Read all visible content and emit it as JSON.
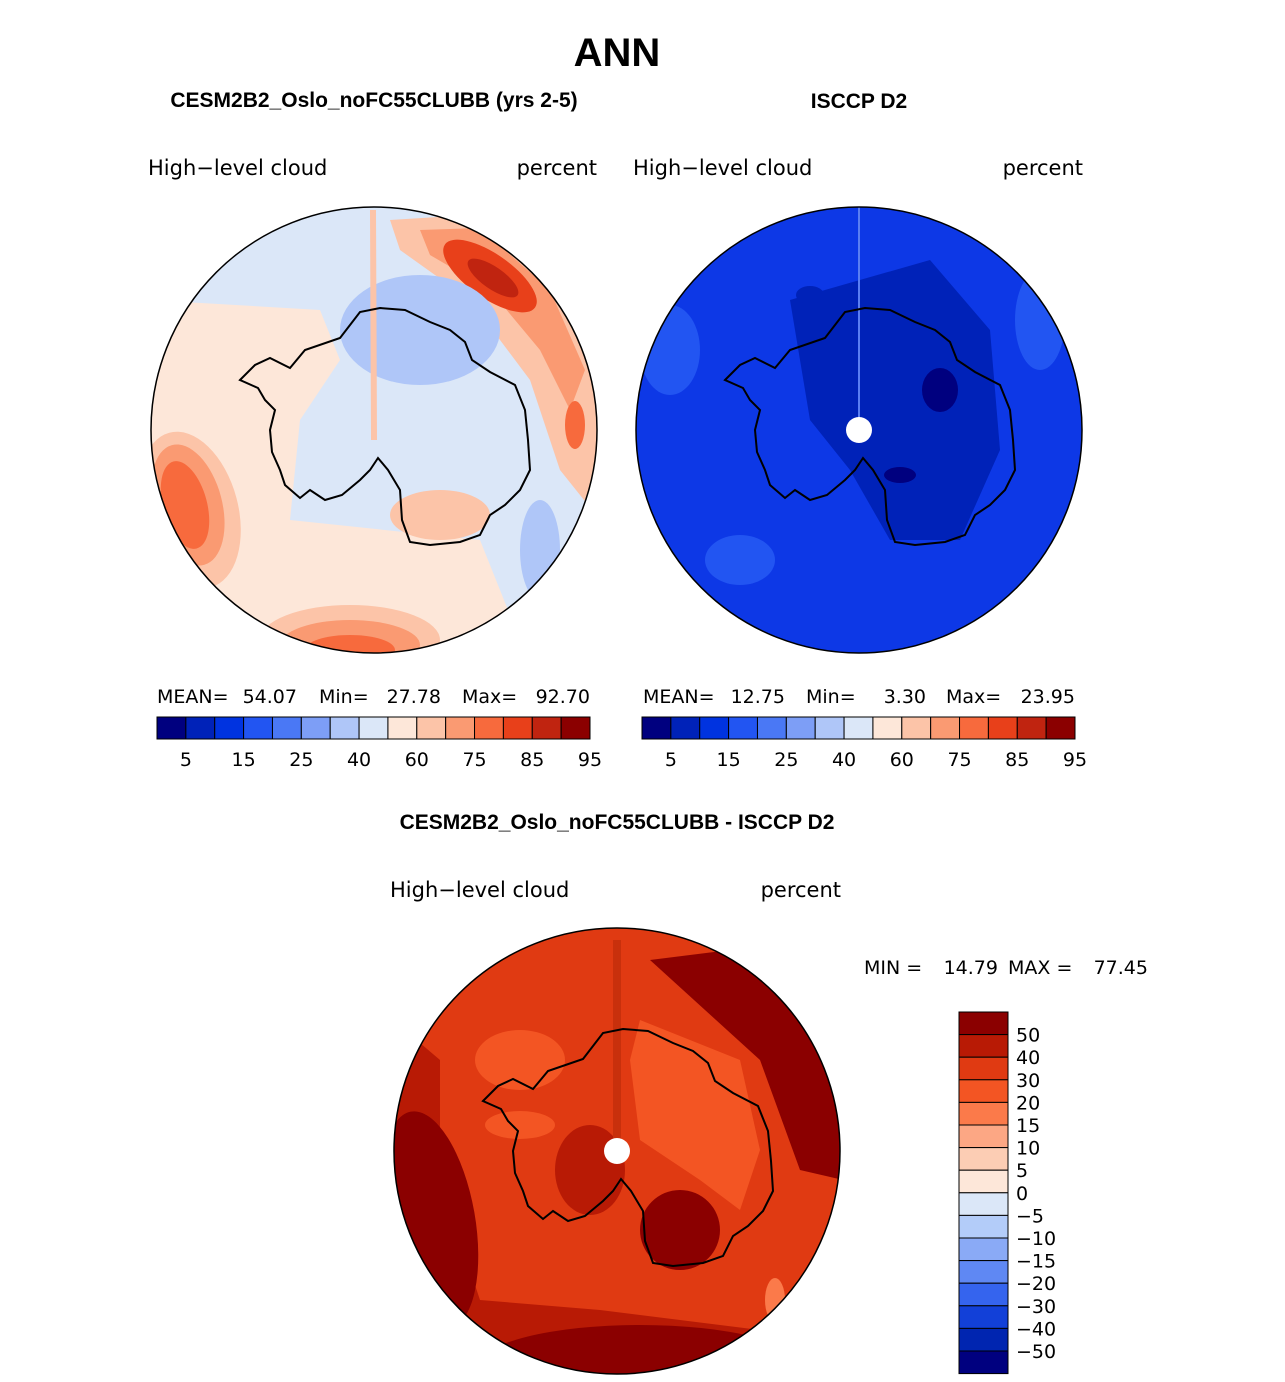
{
  "main_title": "ANN",
  "panels": {
    "model": {
      "title": "CESM2B2_Oslo_noFC55CLUBB (yrs 2-5)",
      "variable": "High−level cloud",
      "units": "percent",
      "mean_label": "MEAN=",
      "mean": "54.07",
      "min_label": "Min=",
      "min": "27.78",
      "max_label": "Max=",
      "max": "92.70"
    },
    "obs": {
      "title": "ISCCP D2",
      "variable": "High−level cloud",
      "units": "percent",
      "mean_label": "MEAN=",
      "mean": "12.75",
      "min_label": "Min=",
      "min": "3.30",
      "max_label": "Max=",
      "max": "23.95"
    },
    "diff": {
      "title": "CESM2B2_Oslo_noFC55CLUBB - ISCCP D2",
      "variable": "High−level cloud",
      "units": "percent",
      "min_label": "MIN =",
      "min": "14.79",
      "max_label": "MAX =",
      "max": "77.45"
    }
  },
  "colorbar_abs": {
    "colors": [
      "#00007f",
      "#0022b8",
      "#0033e0",
      "#2255f2",
      "#4a78f5",
      "#7d9ef6",
      "#afc6f8",
      "#dbe7f8",
      "#fde7d9",
      "#fcc4a8",
      "#fa9a72",
      "#f76a3d",
      "#e8401a",
      "#c02410",
      "#8b0000"
    ],
    "labels": [
      "5",
      "15",
      "25",
      "40",
      "60",
      "75",
      "85",
      "95"
    ]
  },
  "colorbar_diff": {
    "colors": [
      "#8b0000",
      "#b81a05",
      "#e03a12",
      "#f35523",
      "#fb7a4a",
      "#fca784",
      "#fccdb4",
      "#fde7d9",
      "#dbe7f8",
      "#b3ccf9",
      "#8aaaf6",
      "#5f88f3",
      "#3564ee",
      "#1240d8",
      "#0025b0",
      "#00007f"
    ],
    "labels": [
      "50",
      "40",
      "30",
      "20",
      "15",
      "10",
      "5",
      "0",
      "−5",
      "−10",
      "−15",
      "−20",
      "−30",
      "−40",
      "−50"
    ]
  },
  "map_colors": {
    "model_base": "#dbe7f8",
    "obs_base": "#0d38e6",
    "diff_base": "#e03a12"
  }
}
